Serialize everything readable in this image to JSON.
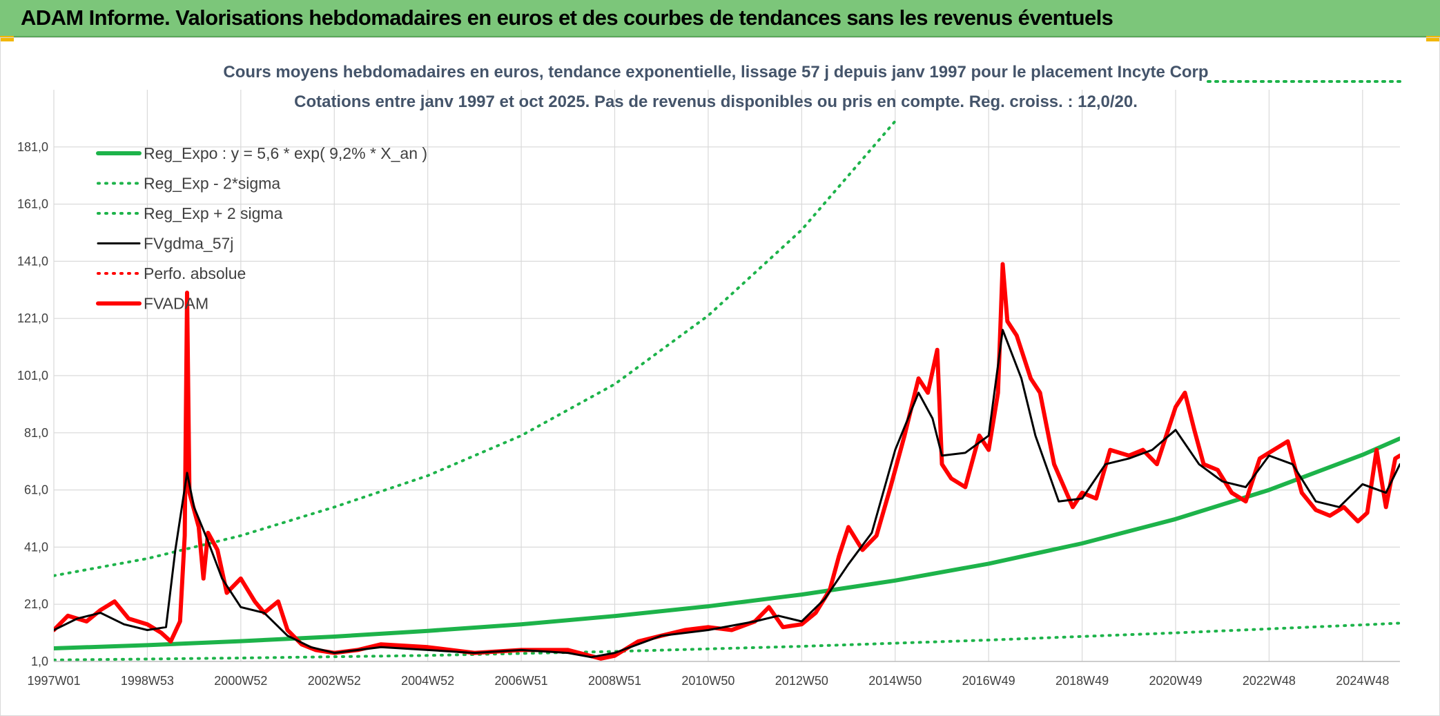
{
  "header": {
    "title": "ADAM Informe. Valorisations hebdomadaires en euros et des courbes de tendances sans les revenus éventuels"
  },
  "colors": {
    "header_bg": "#7cc67a",
    "trend": "#1db34a",
    "fv_smooth": "#000000",
    "fvadam": "#ff0000",
    "title_text": "#44546a",
    "corner_accent": "#f2b705"
  },
  "chart_data": {
    "type": "line",
    "title": "Cours moyens hebdomadaires en euros, tendance exponentielle, lissage 57 j depuis janv 1997 pour le placement Incyte Corp",
    "subtitle": "Cotations entre janv 1997 et oct 2025. Pas de revenus disponibles ou pris en compte. Reg. croiss. : 12,0/20.",
    "xlabel": "",
    "ylabel": "",
    "x_range": [
      1997.0,
      2025.8
    ],
    "ylim": [
      1,
      201
    ],
    "yticks": [
      "1,0",
      "21,0",
      "41,0",
      "61,0",
      "81,0",
      "101,0",
      "121,0",
      "141,0",
      "161,0",
      "181,0"
    ],
    "xticks": [
      {
        "label": "1997W01",
        "year": 1997.0
      },
      {
        "label": "1998W53",
        "year": 1999.0
      },
      {
        "label": "2000W52",
        "year": 2001.0
      },
      {
        "label": "2002W52",
        "year": 2003.0
      },
      {
        "label": "2004W52",
        "year": 2005.0
      },
      {
        "label": "2006W51",
        "year": 2007.0
      },
      {
        "label": "2008W51",
        "year": 2009.0
      },
      {
        "label": "2010W50",
        "year": 2011.0
      },
      {
        "label": "2012W50",
        "year": 2013.0
      },
      {
        "label": "2014W50",
        "year": 2015.0
      },
      {
        "label": "2016W49",
        "year": 2017.0
      },
      {
        "label": "2018W49",
        "year": 2019.0
      },
      {
        "label": "2020W49",
        "year": 2021.0
      },
      {
        "label": "2022W48",
        "year": 2023.0
      },
      {
        "label": "2024W48",
        "year": 2025.0
      }
    ],
    "grid": true,
    "legend_position": "top-left",
    "series": [
      {
        "name": "Reg_Expo : y = 5,6 * exp( 9,2% *  X_an )",
        "style": "solid-thick",
        "color": "#1db34a",
        "x": [
          1997.0,
          1999.0,
          2001.0,
          2003.0,
          2005.0,
          2007.0,
          2009.0,
          2011.0,
          2013.0,
          2015.0,
          2017.0,
          2019.0,
          2021.0,
          2023.0,
          2025.0,
          2025.8
        ],
        "y": [
          5.6,
          6.7,
          8.1,
          9.7,
          11.7,
          14.0,
          16.9,
          20.3,
          24.4,
          29.3,
          35.2,
          42.3,
          50.8,
          61.0,
          73.3,
          79.0
        ]
      },
      {
        "name": "Reg_Exp - 2*sigma",
        "style": "dotted",
        "color": "#1db34a",
        "x": [
          1997.0,
          2001.0,
          2005.0,
          2009.0,
          2013.0,
          2017.0,
          2021.0,
          2025.0,
          2025.8
        ],
        "y": [
          1.5,
          2.2,
          3.1,
          4.5,
          6.3,
          8.5,
          11.0,
          13.8,
          14.4
        ]
      },
      {
        "name": "Reg_Exp + 2 sigma",
        "style": "dotted",
        "color": "#1db34a",
        "x": [
          1997.0,
          1999.0,
          2001.0,
          2003.0,
          2005.0,
          2007.0,
          2009.0,
          2011.0,
          2013.0,
          2015.0
        ],
        "y": [
          31.0,
          37.0,
          45.0,
          55.0,
          66.0,
          80.0,
          98.0,
          122.0,
          152.0,
          190.0
        ]
      },
      {
        "name": "FVgdma_57j",
        "style": "solid",
        "color": "#000000",
        "x": [
          1997.0,
          1997.5,
          1998.0,
          1998.5,
          1999.0,
          1999.4,
          1999.6,
          1999.85,
          2000.0,
          2000.3,
          2000.6,
          2001.0,
          2001.5,
          2002.0,
          2002.5,
          2003.0,
          2004.0,
          2005.0,
          2006.0,
          2007.0,
          2008.0,
          2008.5,
          2009.0,
          2010.0,
          2011.0,
          2012.0,
          2012.5,
          2013.0,
          2013.5,
          2014.0,
          2014.5,
          2015.0,
          2015.5,
          2015.8,
          2016.0,
          2016.5,
          2017.0,
          2017.3,
          2017.7,
          2018.0,
          2018.5,
          2019.0,
          2019.5,
          2020.0,
          2020.5,
          2021.0,
          2021.5,
          2022.0,
          2022.5,
          2023.0,
          2023.5,
          2024.0,
          2024.5,
          2025.0,
          2025.5,
          2025.8
        ],
        "y": [
          12,
          16,
          18,
          14,
          12,
          13,
          40,
          67,
          55,
          43,
          30,
          20,
          18,
          10,
          6,
          4,
          6,
          5,
          4,
          5,
          4,
          2.5,
          4,
          10,
          12,
          15,
          17,
          15,
          23,
          35,
          46,
          75,
          95,
          86,
          73,
          74,
          80,
          117,
          100,
          80,
          57,
          58,
          70,
          72,
          75,
          82,
          70,
          64,
          62,
          73,
          70,
          57,
          55,
          63,
          60,
          70
        ]
      },
      {
        "name": "Perfo. absolue",
        "style": "dotted",
        "color": "#ff0000",
        "x": [],
        "y": []
      },
      {
        "name": "FVADAM",
        "style": "solid-thick",
        "color": "#ff0000",
        "x": [
          1997.0,
          1997.3,
          1997.7,
          1998.0,
          1998.3,
          1998.6,
          1999.0,
          1999.3,
          1999.5,
          1999.7,
          1999.8,
          1999.85,
          1999.9,
          2000.1,
          2000.2,
          2000.3,
          2000.5,
          2000.7,
          2001.0,
          2001.3,
          2001.5,
          2001.8,
          2002.0,
          2002.3,
          2002.6,
          2003.0,
          2003.5,
          2004.0,
          2005.0,
          2006.0,
          2007.0,
          2008.0,
          2008.7,
          2009.0,
          2009.5,
          2010.0,
          2010.5,
          2011.0,
          2011.5,
          2012.0,
          2012.3,
          2012.6,
          2013.0,
          2013.3,
          2013.6,
          2013.8,
          2014.0,
          2014.3,
          2014.6,
          2014.9,
          2015.2,
          2015.5,
          2015.7,
          2015.9,
          2016.0,
          2016.2,
          2016.5,
          2016.8,
          2017.0,
          2017.2,
          2017.3,
          2017.4,
          2017.6,
          2017.9,
          2018.1,
          2018.4,
          2018.8,
          2019.0,
          2019.3,
          2019.6,
          2020.0,
          2020.3,
          2020.6,
          2021.0,
          2021.2,
          2021.4,
          2021.6,
          2021.9,
          2022.2,
          2022.5,
          2022.8,
          2023.1,
          2023.4,
          2023.7,
          2024.0,
          2024.3,
          2024.6,
          2024.9,
          2025.1,
          2025.3,
          2025.5,
          2025.7,
          2025.8
        ],
        "y": [
          12,
          17,
          15,
          19,
          22,
          16,
          14,
          11,
          8,
          15,
          45,
          130,
          60,
          48,
          30,
          46,
          40,
          25,
          30,
          22,
          18,
          22,
          12,
          7,
          5,
          4,
          5,
          7,
          6,
          4,
          5,
          5,
          2,
          3,
          8,
          10,
          12,
          13,
          12,
          15,
          20,
          13,
          14,
          18,
          26,
          38,
          48,
          40,
          45,
          62,
          80,
          100,
          95,
          110,
          70,
          65,
          62,
          80,
          75,
          95,
          140,
          120,
          115,
          100,
          95,
          70,
          55,
          60,
          58,
          75,
          73,
          75,
          70,
          90,
          95,
          82,
          70,
          68,
          60,
          57,
          72,
          75,
          78,
          60,
          54,
          52,
          55,
          50,
          53,
          75,
          55,
          72,
          73
        ]
      }
    ]
  }
}
